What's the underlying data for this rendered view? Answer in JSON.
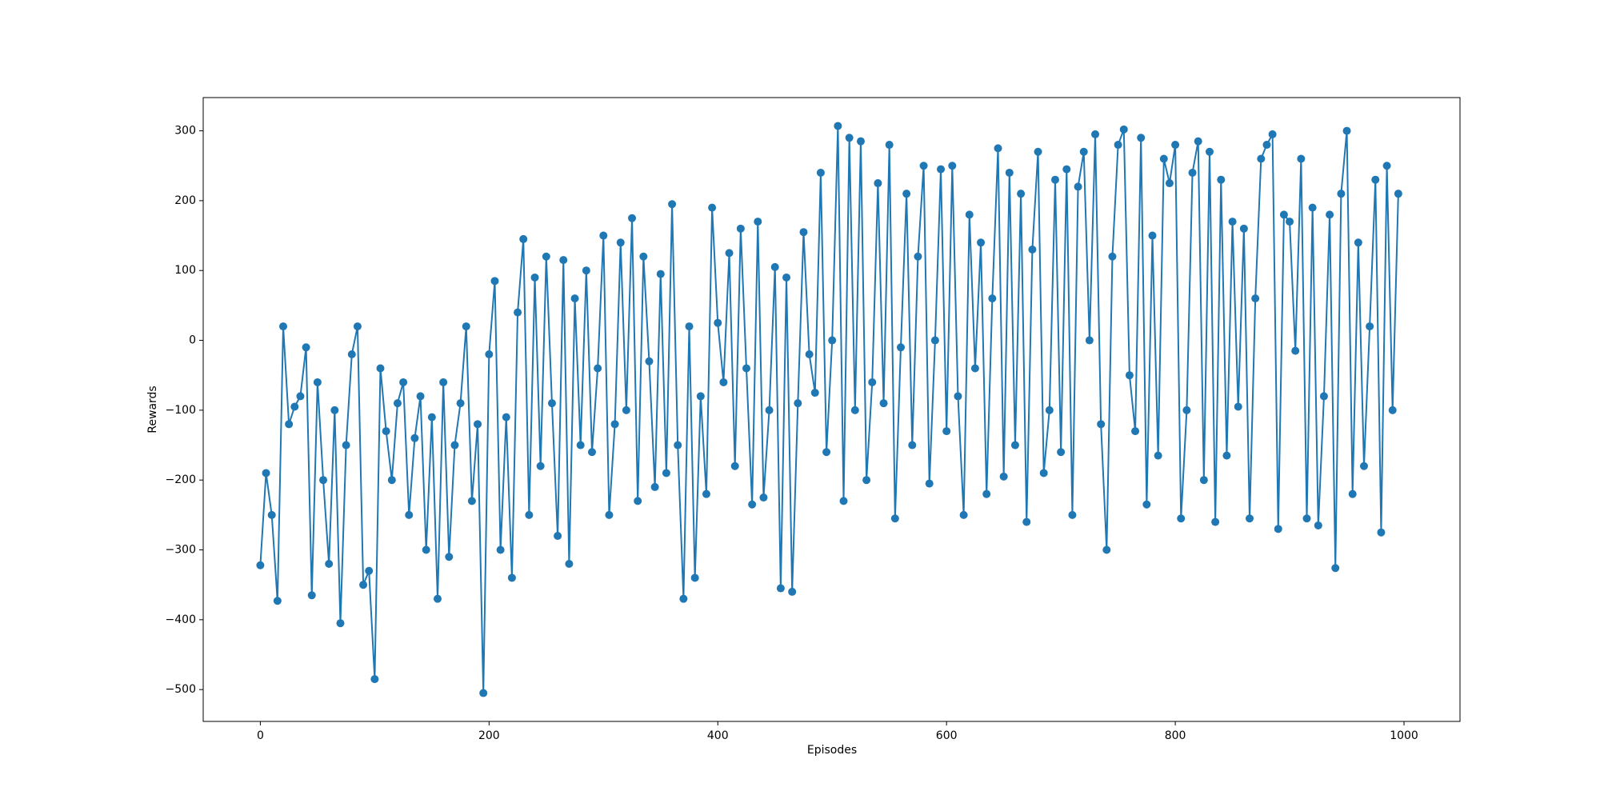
{
  "chart_data": {
    "type": "line",
    "x_label": "Episodes",
    "y_label": "Rewards",
    "color": "#1f77b4",
    "markers": true,
    "grid": false,
    "xlim": [
      -49.95,
      1048.95
    ],
    "ylim": [
      -545.6,
      347.6
    ],
    "xticks": [
      0,
      200,
      400,
      600,
      800,
      1000
    ],
    "yticks": [
      {
        "value": -500,
        "label": "−500"
      },
      {
        "value": -400,
        "label": "−400"
      },
      {
        "value": -300,
        "label": "−300"
      },
      {
        "value": -200,
        "label": "−200"
      },
      {
        "value": -100,
        "label": "−100"
      },
      0,
      100,
      200,
      300
    ],
    "x": [
      0,
      5,
      10,
      15,
      20,
      25,
      30,
      35,
      40,
      45,
      50,
      55,
      60,
      65,
      70,
      75,
      80,
      85,
      90,
      95,
      100,
      105,
      110,
      115,
      120,
      125,
      130,
      135,
      140,
      145,
      150,
      155,
      160,
      165,
      170,
      175,
      180,
      185,
      190,
      195,
      200,
      205,
      210,
      215,
      220,
      225,
      230,
      235,
      240,
      245,
      250,
      255,
      260,
      265,
      270,
      275,
      280,
      285,
      290,
      295,
      300,
      305,
      310,
      315,
      320,
      325,
      330,
      335,
      340,
      345,
      350,
      355,
      360,
      365,
      370,
      375,
      380,
      385,
      390,
      395,
      400,
      405,
      410,
      415,
      420,
      425,
      430,
      435,
      440,
      445,
      450,
      455,
      460,
      465,
      470,
      475,
      480,
      485,
      490,
      495,
      500,
      505,
      510,
      515,
      520,
      525,
      530,
      535,
      540,
      545,
      550,
      555,
      560,
      565,
      570,
      575,
      580,
      585,
      590,
      595,
      600,
      605,
      610,
      615,
      620,
      625,
      630,
      635,
      640,
      645,
      650,
      655,
      660,
      665,
      670,
      675,
      680,
      685,
      690,
      695,
      700,
      705,
      710,
      715,
      720,
      725,
      730,
      735,
      740,
      745,
      750,
      755,
      760,
      765,
      770,
      775,
      780,
      785,
      790,
      795,
      800,
      805,
      810,
      815,
      820,
      825,
      830,
      835,
      840,
      845,
      850,
      855,
      860,
      865,
      870,
      875,
      880,
      885,
      890,
      895,
      900,
      905,
      910,
      915,
      920,
      925,
      930,
      935,
      940,
      945,
      950,
      955,
      960,
      965,
      970,
      975,
      980,
      985,
      990,
      995
    ],
    "values": [
      -322,
      -190,
      -250,
      -373,
      20,
      -120,
      -95,
      -80,
      -10,
      -365,
      -60,
      -200,
      -320,
      -100,
      -405,
      -150,
      -20,
      20,
      -350,
      -330,
      -485,
      -40,
      -130,
      -200,
      -90,
      -60,
      -250,
      -140,
      -80,
      -300,
      -110,
      -370,
      -60,
      -310,
      -150,
      -90,
      20,
      -230,
      -120,
      -505,
      -20,
      85,
      -300,
      -110,
      -340,
      40,
      145,
      -250,
      90,
      -180,
      120,
      -90,
      -280,
      115,
      -320,
      60,
      -150,
      100,
      -160,
      -40,
      150,
      -250,
      -120,
      140,
      -100,
      175,
      -230,
      120,
      -30,
      -210,
      95,
      -190,
      195,
      -150,
      -370,
      20,
      -340,
      -80,
      -220,
      190,
      25,
      -60,
      125,
      -180,
      160,
      -40,
      -235,
      170,
      -225,
      -100,
      105,
      -355,
      90,
      -360,
      -90,
      155,
      -20,
      -75,
      240,
      -160,
      0,
      307,
      -230,
      290,
      -100,
      285,
      -200,
      -60,
      225,
      -90,
      280,
      -255,
      -10,
      210,
      -150,
      120,
      250,
      -205,
      0,
      245,
      -130,
      250,
      -80,
      -250,
      180,
      -40,
      140,
      -220,
      60,
      275,
      -195,
      240,
      -150,
      210,
      -260,
      130,
      270,
      -190,
      -100,
      230,
      -160,
      245,
      -250,
      220,
      270,
      0,
      295,
      -120,
      -300,
      120,
      280,
      302,
      -50,
      -130,
      290,
      -235,
      150,
      -165,
      260,
      225,
      280,
      -255,
      -100,
      240,
      285,
      -200,
      270,
      -260,
      230,
      -165,
      170,
      -95,
      160,
      -255,
      60,
      260,
      280,
      295,
      -270,
      180,
      170,
      -15,
      260,
      -255,
      190,
      -265,
      -80,
      180,
      -326,
      210,
      300,
      -220,
      140,
      -180,
      20,
      230,
      -275,
      250,
      -100,
      210
    ]
  }
}
